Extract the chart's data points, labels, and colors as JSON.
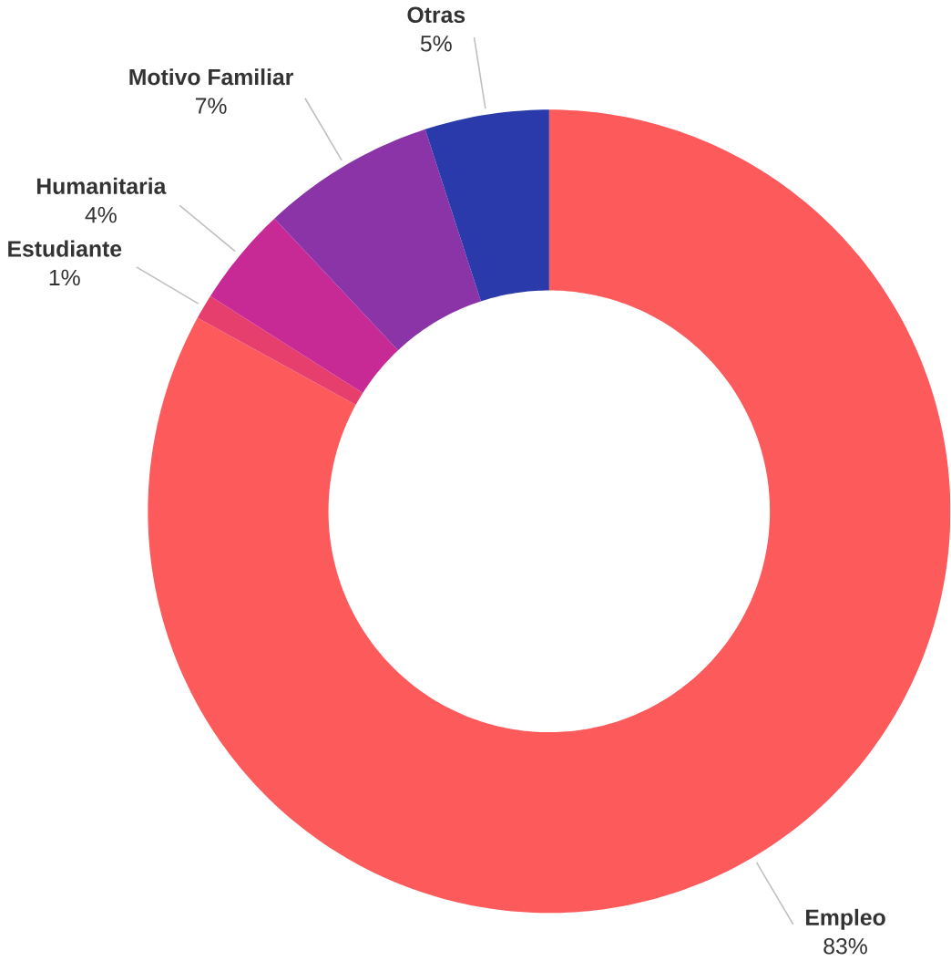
{
  "chart_data": {
    "type": "donut",
    "categories": [
      "Empleo",
      "Estudiante",
      "Humanitaria",
      "Motivo Familiar",
      "Otras"
    ],
    "values": [
      83,
      1,
      4,
      7,
      5
    ],
    "value_labels": [
      "83%",
      "1%",
      "4%",
      "7%",
      "5%"
    ],
    "colors": [
      "#fd5a5b",
      "#e63e6d",
      "#c82a95",
      "#8a34a8",
      "#2a3aaa"
    ]
  }
}
